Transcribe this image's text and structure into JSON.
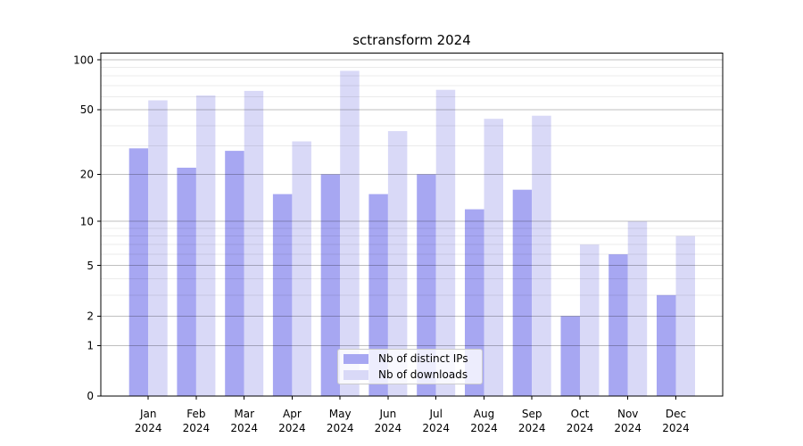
{
  "chart_data": {
    "type": "bar",
    "title": "sctransform 2024",
    "xlabel": "",
    "ylabel": "",
    "year": "2024",
    "categories": [
      "Jan",
      "Feb",
      "Mar",
      "Apr",
      "May",
      "Jun",
      "Jul",
      "Aug",
      "Sep",
      "Oct",
      "Nov",
      "Dec"
    ],
    "series": [
      {
        "name": "Nb of distinct IPs",
        "color": "#a7a7f2",
        "values": [
          29,
          22,
          28,
          15,
          20,
          15,
          20,
          12,
          16,
          2,
          6,
          3
        ]
      },
      {
        "name": "Nb of downloads",
        "color": "#d9d9f7",
        "values": [
          57,
          61,
          65,
          32,
          86,
          37,
          66,
          44,
          46,
          7,
          10,
          8
        ]
      }
    ],
    "yscale": "log1p",
    "yticks": [
      0,
      1,
      2,
      5,
      10,
      20,
      50,
      100
    ],
    "minor_yticks": [
      3,
      4,
      6,
      7,
      8,
      9,
      30,
      40,
      60,
      70,
      80,
      90
    ],
    "ylim": [
      0,
      110
    ],
    "grid": "horizontal, drawn over bars",
    "legend_position": "lower center",
    "tick_color": "#000000"
  }
}
